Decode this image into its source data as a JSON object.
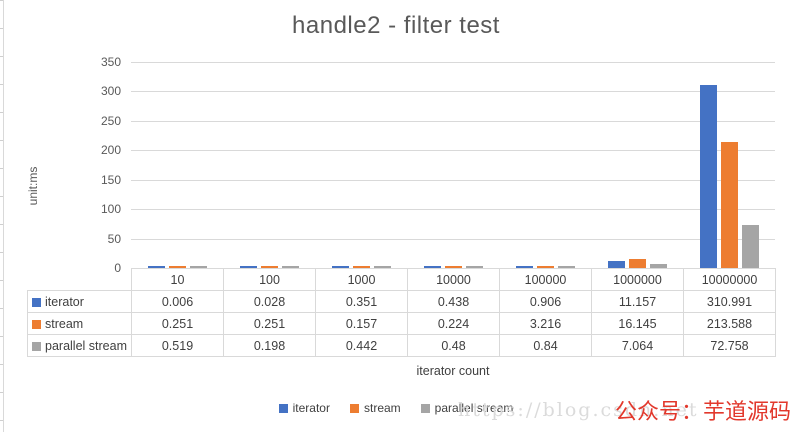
{
  "chart_data": {
    "type": "bar",
    "title": "handle2 - filter test",
    "ylabel": "unit:ms",
    "xlabel": "iterator count",
    "categories": [
      "10",
      "100",
      "1000",
      "10000",
      "100000",
      "1000000",
      "10000000"
    ],
    "series": [
      {
        "name": "iterator",
        "color": "#4472c4",
        "values": [
          "0.006",
          "0.028",
          "0.351",
          "0.438",
          "0.906",
          "11.157",
          "310.991"
        ]
      },
      {
        "name": "stream",
        "color": "#ed7d31",
        "values": [
          "0.251",
          "0.251",
          "0.157",
          "0.224",
          "3.216",
          "16.145",
          "213.588"
        ]
      },
      {
        "name": "parallel stream",
        "color": "#a5a5a5",
        "values": [
          "0.519",
          "0.198",
          "0.442",
          "0.48",
          "0.84",
          "7.064",
          "72.758"
        ]
      }
    ],
    "ylim": [
      0,
      350
    ],
    "yticks": [
      "350",
      "300",
      "250",
      "200",
      "150",
      "100",
      "50",
      "0"
    ],
    "grid": true,
    "legend_position": "bottom",
    "data_table_shown": true
  },
  "watermark": {
    "url_text": "https://blog.csdn.net",
    "brand_text": "公众号：芋道源码",
    "url_color": "#dbdbdb",
    "brand_color": "#e2382c"
  }
}
